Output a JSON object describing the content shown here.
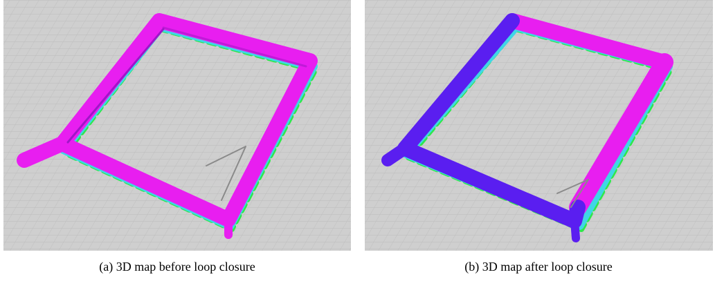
{
  "figure": {
    "panels": [
      {
        "caption": "(a) 3D map before loop closure"
      },
      {
        "caption": "(b) 3D map after loop closure"
      }
    ]
  }
}
